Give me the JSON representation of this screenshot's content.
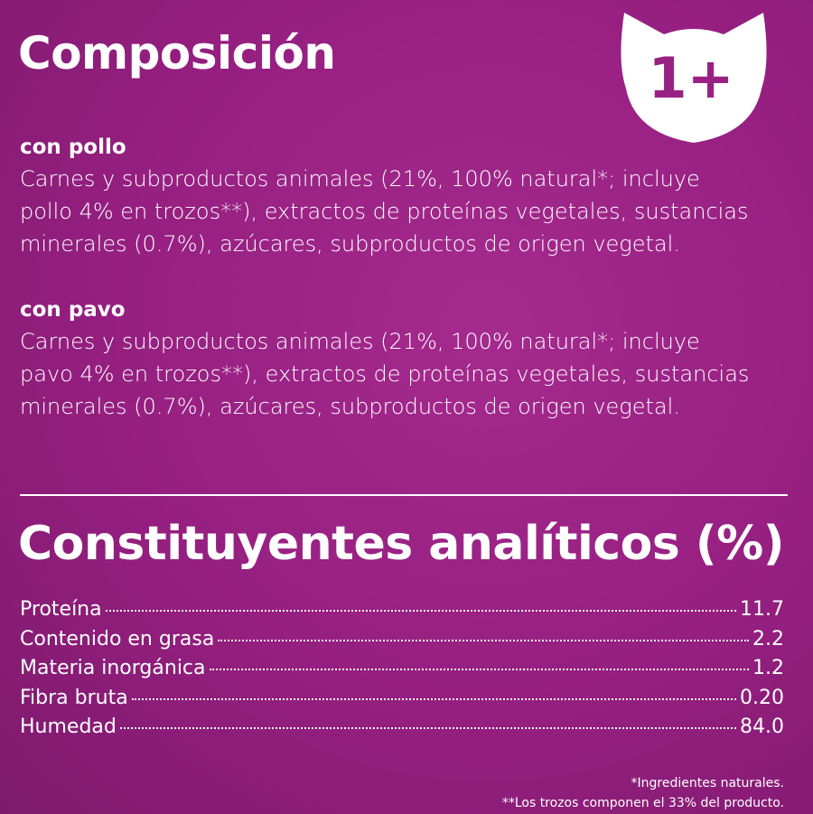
{
  "header": {
    "title": "Composición",
    "badge": "1+"
  },
  "sections": [
    {
      "heading": "con pollo",
      "lines": [
        "Carnes y subproductos animales (21%, 100% natural*; incluye",
        "pollo 4% en trozos**), extractos de proteínas vegetales, sustancias",
        "minerales (0.7%), azúcares, subproductos  de origen vegetal."
      ]
    },
    {
      "heading": "con pavo",
      "lines": [
        "Carnes y subproductos animales (21%, 100% natural*; incluye",
        "pavo 4% en trozos**), extractos de proteínas vegetales, sustancias",
        "minerales (0.7%), azúcares, subproductos de origen vegetal."
      ]
    }
  ],
  "analytics": {
    "title": "Constituyentes analíticos (%)",
    "rows": [
      {
        "label": "Proteína",
        "value": "11.7"
      },
      {
        "label": "Contenido en grasa",
        "value": "2.2"
      },
      {
        "label": "Materia inorgánica",
        "value": "1.2"
      },
      {
        "label": "Fibra bruta",
        "value": "0.20"
      },
      {
        "label": "Humedad",
        "value": "84.0"
      }
    ]
  },
  "footnotes": [
    "*Ingredientes naturales.",
    "**Los trozos componen el 33% del producto."
  ]
}
